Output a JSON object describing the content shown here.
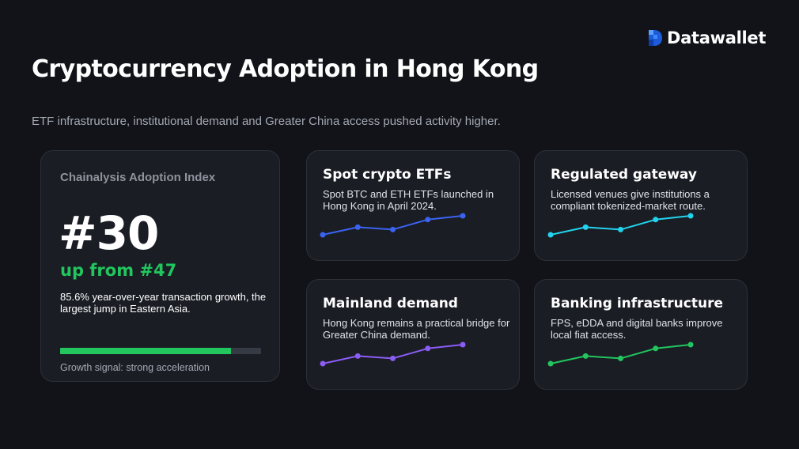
{
  "brand": {
    "name": "Datawallet",
    "icon": "datawallet-logo-icon",
    "colors": {
      "dark": "#1e5bd8",
      "light": "#3b8bff"
    }
  },
  "header": {
    "title": "Cryptocurrency Adoption in Hong Kong",
    "subtitle": "ETF infrastructure, institutional demand and Greater China access pushed activity higher."
  },
  "main_card": {
    "label": "Chainalysis Adoption Index",
    "rank": "#30",
    "change": "up from #47",
    "description": "85.6% year-over-year transaction growth, the largest jump in Eastern Asia.",
    "progress": 0.85,
    "progress_color": "#22c55e",
    "signal": "Growth signal: strong acceleration"
  },
  "feature_cards": [
    {
      "title": "Spot crypto ETFs",
      "description": "Spot BTC and ETH ETFs launched in Hong Kong in April 2024.",
      "color": "#3b63f0",
      "trend": [
        1,
        2.6,
        2.1,
        4.2,
        5
      ]
    },
    {
      "title": "Regulated gateway",
      "description": "Licensed venues give institutions a compliant tokenized-market route.",
      "color": "#22d3ee",
      "trend": [
        1,
        2.6,
        2.1,
        4.2,
        5
      ]
    },
    {
      "title": "Mainland demand",
      "description": "Hong Kong remains a practical bridge for Greater China demand.",
      "color": "#8b5cf6",
      "trend": [
        1,
        2.6,
        2.1,
        4.2,
        5
      ]
    },
    {
      "title": "Banking infrastructure",
      "description": "FPS, eDDA and digital banks improve local fiat access.",
      "color": "#22c55e",
      "trend": [
        1,
        2.6,
        2.1,
        4.2,
        5
      ]
    }
  ]
}
